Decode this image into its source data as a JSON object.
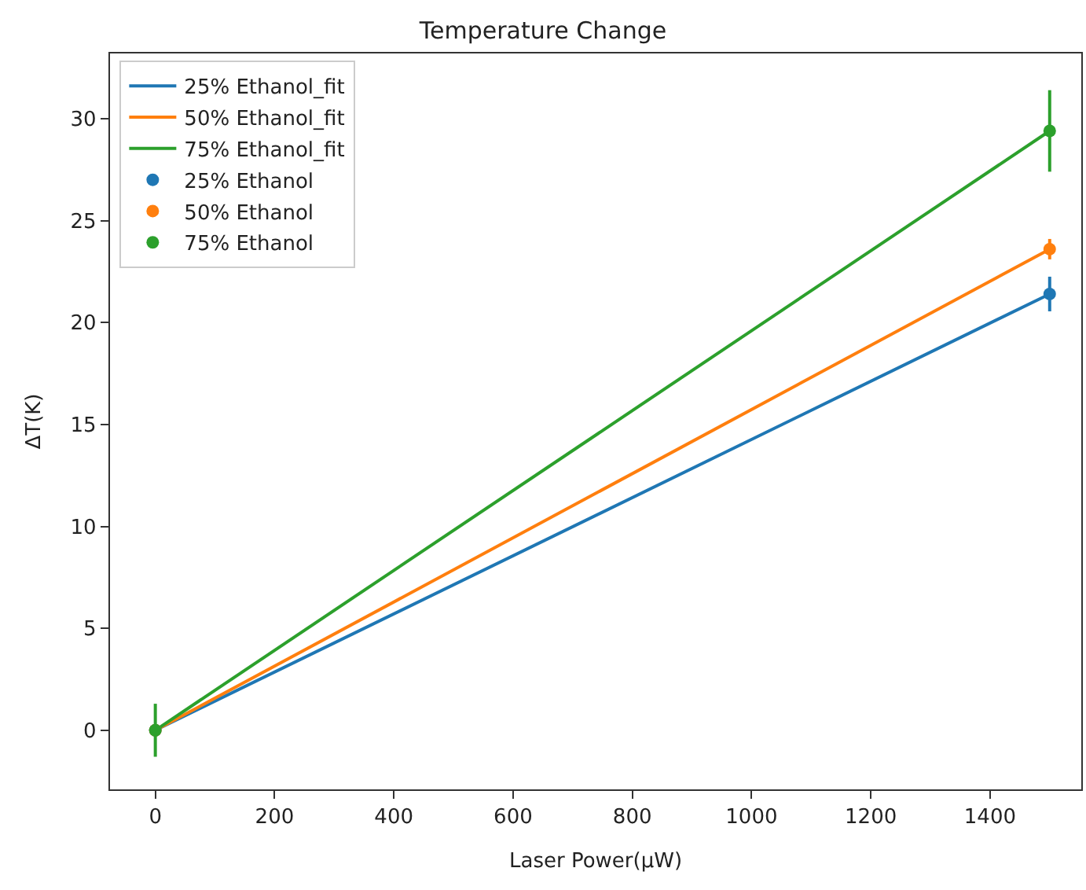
{
  "chart_data": {
    "type": "line",
    "title": "Temperature Change",
    "xlabel": "Laser Power(μW)",
    "ylabel": "ΔT(K)",
    "x": [
      0,
      1500
    ],
    "xlim": [
      -76,
      1553
    ],
    "xticks": [
      0,
      200,
      400,
      600,
      800,
      1000,
      1200,
      1400
    ],
    "ylim": [
      -2.9,
      33.2
    ],
    "yticks": [
      0,
      5,
      10,
      15,
      20,
      25,
      30
    ],
    "legend": "top left",
    "series": [
      {
        "name": "25% Ethanol_fit",
        "color": "#1f77b4",
        "values": [
          0,
          21.4
        ],
        "marker": "none"
      },
      {
        "name": "50% Ethanol_fit",
        "color": "#ff7f0e",
        "values": [
          0,
          23.6
        ],
        "marker": "none"
      },
      {
        "name": "75% Ethanol_fit",
        "color": "#2ca02c",
        "values": [
          0,
          29.4
        ],
        "marker": "none"
      },
      {
        "type": "scatter",
        "name": "25% Ethanol",
        "color": "#1f77b4",
        "values": [
          0,
          21.4
        ],
        "errors": [
          null,
          0.85
        ],
        "marker": "circle"
      },
      {
        "type": "scatter",
        "name": "50% Ethanol",
        "color": "#ff7f0e",
        "values": [
          0,
          23.6
        ],
        "errors": [
          null,
          0.5
        ],
        "marker": "circle"
      },
      {
        "type": "scatter",
        "name": "75% Ethanol",
        "color": "#2ca02c",
        "values": [
          0,
          29.4
        ],
        "errors": [
          1.3,
          2.0
        ],
        "marker": "circle"
      }
    ]
  }
}
